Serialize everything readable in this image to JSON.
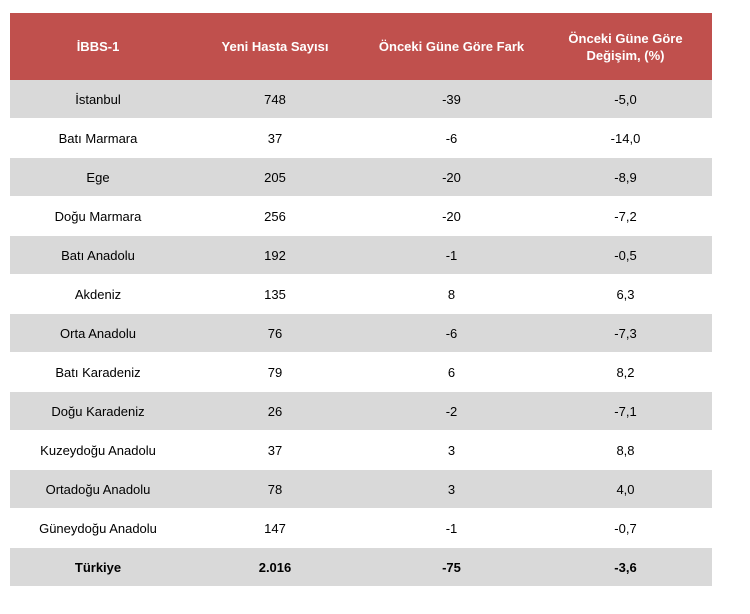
{
  "headers": [
    "İBBS-1",
    "Yeni Hasta Sayısı",
    "Önceki Güne Göre Fark",
    "Önceki Güne Göre Değişim, (%)"
  ],
  "rows": [
    [
      "İstanbul",
      "748",
      "-39",
      "-5,0"
    ],
    [
      "Batı Marmara",
      "37",
      "-6",
      "-14,0"
    ],
    [
      "Ege",
      "205",
      "-20",
      "-8,9"
    ],
    [
      "Doğu Marmara",
      "256",
      "-20",
      "-7,2"
    ],
    [
      "Batı Anadolu",
      "192",
      "-1",
      "-0,5"
    ],
    [
      "Akdeniz",
      "135",
      "8",
      "6,3"
    ],
    [
      "Orta Anadolu",
      "76",
      "-6",
      "-7,3"
    ],
    [
      "Batı Karadeniz",
      "79",
      "6",
      "8,2"
    ],
    [
      "Doğu Karadeniz",
      "26",
      "-2",
      "-7,1"
    ],
    [
      "Kuzeydoğu Anadolu",
      "37",
      "3",
      "8,8"
    ],
    [
      "Ortadoğu Anadolu",
      "78",
      "3",
      "4,0"
    ],
    [
      "Güneydoğu Anadolu",
      "147",
      "-1",
      "-0,7"
    ]
  ],
  "total": [
    "Türkiye",
    "2.016",
    "-75",
    "-3,6"
  ],
  "colors": {
    "header_bg": "#c0504d",
    "band": "#d9d9d9"
  }
}
